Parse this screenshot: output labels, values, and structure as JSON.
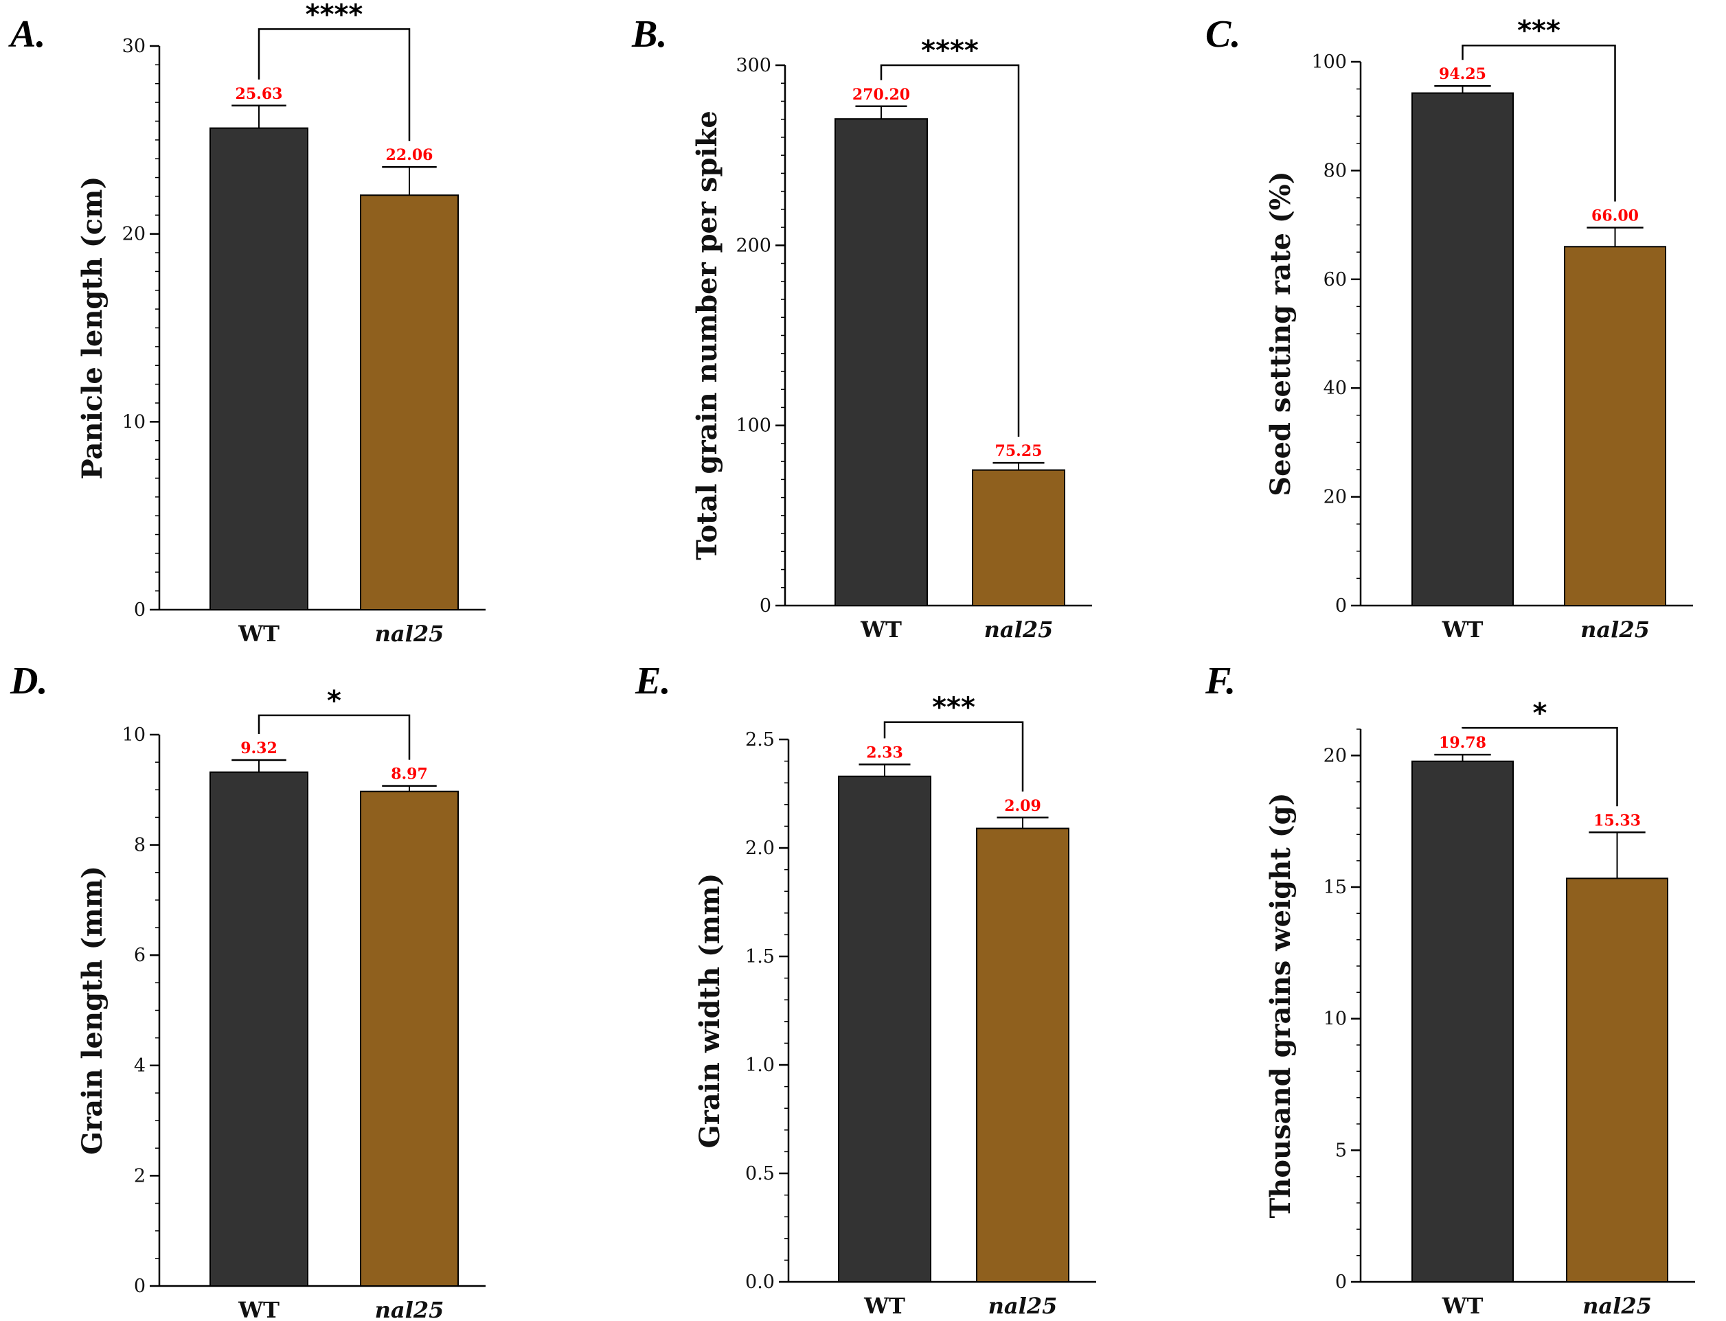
{
  "colors": {
    "wt": "#333333",
    "mutant": "#8f601e",
    "value_label": "#ff0000",
    "axis": "#000000"
  },
  "chart_data": [
    {
      "panel": "A.",
      "type": "bar",
      "ylabel": "Panicle  length (cm)",
      "categories": [
        "WT",
        "nal25"
      ],
      "values": [
        25.63,
        22.06
      ],
      "value_labels": [
        "25.63",
        "22.06"
      ],
      "errors": [
        1.2,
        1.5
      ],
      "ylim": [
        0,
        30
      ],
      "yticks": [
        0,
        10,
        20,
        30
      ],
      "tick_labels": [
        "0",
        "10",
        "20",
        "30"
      ],
      "minor_step": 1,
      "significance": "****",
      "bracket_top": 30.9
    },
    {
      "panel": "B.",
      "type": "bar",
      "ylabel": "Total grain number per spike",
      "categories": [
        "WT",
        "nal25"
      ],
      "values": [
        270.2,
        75.25
      ],
      "value_labels": [
        "270.20",
        "75.25"
      ],
      "errors": [
        7,
        4
      ],
      "ylim": [
        0,
        300
      ],
      "yticks": [
        0,
        100,
        200,
        300
      ],
      "tick_labels": [
        "0",
        "100",
        "200",
        "300"
      ],
      "minor_step": 10,
      "significance": "****",
      "bracket_top": 300
    },
    {
      "panel": "C.",
      "type": "bar",
      "ylabel": "Seed setting rate (%)",
      "categories": [
        "WT",
        "nal25"
      ],
      "values": [
        94.25,
        66.0
      ],
      "value_labels": [
        "94.25",
        "66.00"
      ],
      "errors": [
        1.3,
        3.5
      ],
      "ylim": [
        0,
        100
      ],
      "yticks": [
        0,
        20,
        40,
        60,
        80,
        100
      ],
      "tick_labels": [
        "0",
        "20",
        "40",
        "60",
        "80",
        "100"
      ],
      "minor_step": 5,
      "significance": "***",
      "bracket_top": 103
    },
    {
      "panel": "D.",
      "type": "bar",
      "ylabel": "Grain length (mm)",
      "categories": [
        "WT",
        "nal25"
      ],
      "values": [
        9.32,
        8.97
      ],
      "value_labels": [
        "9.32",
        "8.97"
      ],
      "errors": [
        0.22,
        0.1
      ],
      "ylim": [
        0,
        10
      ],
      "yticks": [
        0,
        2,
        4,
        6,
        8,
        10
      ],
      "tick_labels": [
        "0",
        "2",
        "4",
        "6",
        "8",
        "10"
      ],
      "minor_step": 0.5,
      "significance": "*",
      "bracket_top": 10.35
    },
    {
      "panel": "E.",
      "type": "bar",
      "ylabel": "Grain width (mm)",
      "categories": [
        "WT",
        "nal25"
      ],
      "values": [
        2.33,
        2.09
      ],
      "value_labels": [
        "2.33",
        "2.09"
      ],
      "errors": [
        0.055,
        0.05
      ],
      "ylim": [
        0,
        2.5
      ],
      "yticks": [
        0,
        0.5,
        1.0,
        1.5,
        2.0,
        2.5
      ],
      "tick_labels": [
        "0.0",
        "0.5",
        "1.0",
        "1.5",
        "2.0",
        "2.5"
      ],
      "minor_step": 0.1,
      "significance": "***",
      "bracket_top": 2.58
    },
    {
      "panel": "F.",
      "type": "bar",
      "ylabel": "Thousand grains weight (g)",
      "categories": [
        "WT",
        "nal25"
      ],
      "values": [
        19.78,
        15.33
      ],
      "value_labels": [
        "19.78",
        "15.33"
      ],
      "errors": [
        0.25,
        1.75
      ],
      "ylim": [
        0,
        21
      ],
      "yticks": [
        0,
        5,
        10,
        15,
        20
      ],
      "tick_labels": [
        "0",
        "5",
        "10",
        "15",
        "20"
      ],
      "minor_step": 1,
      "significance": "*",
      "bracket_top": 21.05
    }
  ]
}
